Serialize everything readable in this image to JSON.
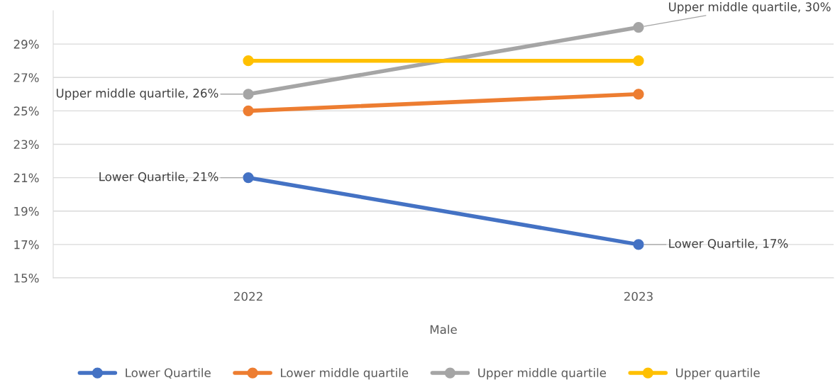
{
  "chart_data": {
    "type": "line",
    "xlabel": "Male",
    "categories": [
      "2022",
      "2023"
    ],
    "series": [
      {
        "name": "Lower Quartile",
        "color": "#4472c4",
        "values": [
          21,
          17
        ]
      },
      {
        "name": "Lower middle quartile",
        "color": "#ed7d31",
        "values": [
          25,
          26
        ]
      },
      {
        "name": "Upper middle quartile",
        "color": "#a5a5a5",
        "values": [
          26,
          30
        ]
      },
      {
        "name": "Upper quartile",
        "color": "#ffc000",
        "values": [
          28,
          28
        ]
      }
    ],
    "ylim": [
      15,
      31
    ],
    "yticks": [
      {
        "value": 15,
        "label": "15%"
      },
      {
        "value": 17,
        "label": "17%"
      },
      {
        "value": 19,
        "label": "19%"
      },
      {
        "value": 21,
        "label": "21%"
      },
      {
        "value": 23,
        "label": "23%"
      },
      {
        "value": 25,
        "label": "25%"
      },
      {
        "value": 27,
        "label": "27%"
      },
      {
        "value": 29,
        "label": "29%"
      }
    ],
    "annotations": [
      {
        "text": "Upper middle quartile, 30%",
        "x": "2023",
        "y": 30
      },
      {
        "text": "Upper middle quartile, 26%",
        "x": "2022",
        "y": 26
      },
      {
        "text": "Lower Quartile, 21%",
        "x": "2022",
        "y": 21
      },
      {
        "text": "Lower Quartile, 17%",
        "x": "2023",
        "y": 17
      }
    ],
    "grid": "y",
    "legend": "bottom",
    "marker": "circle",
    "line_style": "solid"
  }
}
